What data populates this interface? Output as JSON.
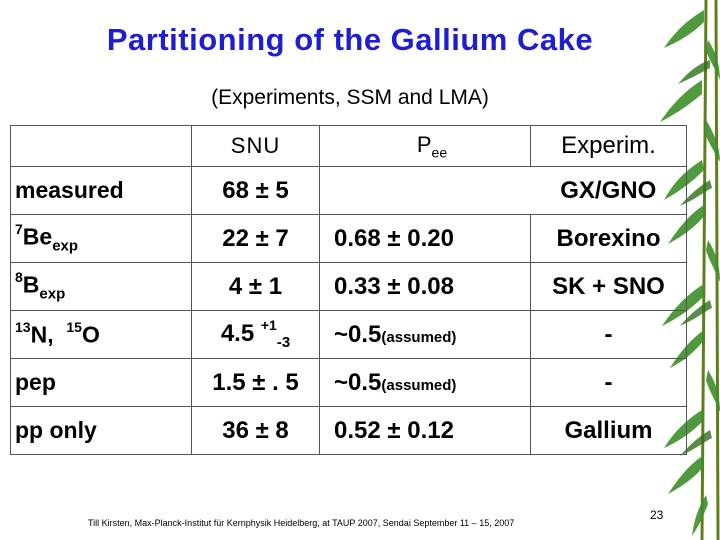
{
  "title": "Partitioning of the Gallium Cake",
  "subtitle": "(Experiments, SSM  and LMA)",
  "header": {
    "col_snu": "SNU",
    "col_p": "P",
    "col_p_sub": "ee",
    "col_exp": "Experim."
  },
  "rows": [
    {
      "label": "measured",
      "snu": "68 ± 5",
      "pee": "",
      "exp": "GX/GNO"
    },
    {
      "label_sup": "7",
      "label_main": "Be",
      "label_sub": "exp",
      "snu": "22 ± 7",
      "pee": "0.68 ± 0.20",
      "exp": "Borexino"
    },
    {
      "label_sup": "8",
      "label_main": "B",
      "label_sub": "exp",
      "snu": "4 ± 1",
      "pee": "0.33 ± 0.08",
      "exp": "SK + SNO"
    },
    {
      "label_sup1": "13",
      "label_main1": "N,",
      "label_sup2": "15",
      "label_main2": "O",
      "snu_main": "4.5",
      "snu_sup": "+1",
      "snu_sub": "-3",
      "pee_main": "~0.5",
      "pee_note": "(assumed)",
      "exp": "-"
    },
    {
      "label": "pep",
      "snu": "1.5 ± . 5",
      "pee_main": "~0.5",
      "pee_note": "(assumed)",
      "exp": "-"
    },
    {
      "label": "pp only",
      "snu": "36 ± 8",
      "pee": "0.52 ± 0.12",
      "exp": "Gallium"
    }
  ],
  "footer": "Till Kirsten,  Max-Planck-Institut für Kernphysik Heidelberg, at TAUP 2007, Sendai September 11 – 15, 2007",
  "page_number": "23",
  "colors": {
    "title": "#1e1ed0",
    "bamboo_leaf": "#3f8f2a",
    "bamboo_stem": "#6b8e23"
  },
  "decoration": "bamboo-leaves"
}
